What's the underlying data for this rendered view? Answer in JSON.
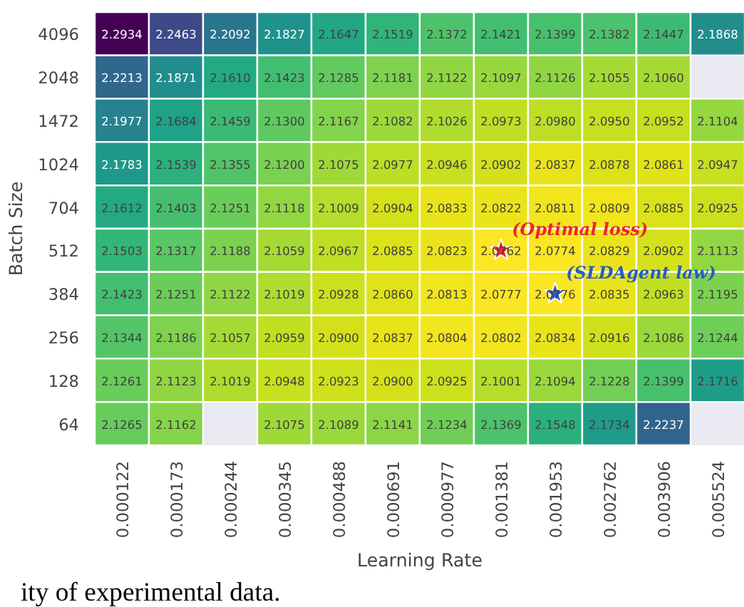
{
  "chart_data": {
    "type": "heatmap",
    "xlabel": "Learning Rate",
    "ylabel": "Batch Size",
    "categories": [
      "0.000122",
      "0.000173",
      "0.000244",
      "0.000345",
      "0.000488",
      "0.000691",
      "0.000977",
      "0.001381",
      "0.001953",
      "0.002762",
      "0.003906",
      "0.005524"
    ],
    "y_categories": [
      "4096",
      "2048",
      "1472",
      "1024",
      "704",
      "512",
      "384",
      "256",
      "128",
      "64"
    ],
    "cells": [
      [
        2.2934,
        2.2463,
        2.2092,
        2.1827,
        2.1647,
        2.1519,
        2.1372,
        2.1421,
        2.1399,
        2.1382,
        2.1447,
        2.1868
      ],
      [
        2.2213,
        2.1871,
        2.161,
        2.1423,
        2.1285,
        2.1181,
        2.1122,
        2.1097,
        2.1126,
        2.1055,
        2.106,
        null
      ],
      [
        2.1977,
        2.1684,
        2.1459,
        2.13,
        2.1167,
        2.1082,
        2.1026,
        2.0973,
        2.098,
        2.095,
        2.0952,
        2.1104
      ],
      [
        2.1783,
        2.1539,
        2.1355,
        2.12,
        2.1075,
        2.0977,
        2.0946,
        2.0902,
        2.0837,
        2.0878,
        2.0861,
        2.0947
      ],
      [
        2.1612,
        2.1403,
        2.1251,
        2.1118,
        2.1009,
        2.0904,
        2.0833,
        2.0822,
        2.0811,
        2.0809,
        2.0885,
        2.0925
      ],
      [
        2.1503,
        2.1317,
        2.1188,
        2.1059,
        2.0967,
        2.0885,
        2.0823,
        2.0762,
        2.0774,
        2.0829,
        2.0902,
        2.1113
      ],
      [
        2.1423,
        2.1251,
        2.1122,
        2.1019,
        2.0928,
        2.086,
        2.0813,
        2.0777,
        2.0776,
        2.0835,
        2.0963,
        2.1195
      ],
      [
        2.1344,
        2.1186,
        2.1057,
        2.0959,
        2.09,
        2.0837,
        2.0804,
        2.0802,
        2.0834,
        2.0916,
        2.1086,
        2.1244
      ],
      [
        2.1261,
        2.1123,
        2.1019,
        2.0948,
        2.0923,
        2.09,
        2.0925,
        2.1001,
        2.1094,
        2.1228,
        2.1399,
        2.1716
      ],
      [
        2.1265,
        2.1162,
        null,
        2.1075,
        2.1089,
        2.1141,
        2.1234,
        2.1369,
        2.1548,
        2.1734,
        2.2237,
        null
      ]
    ],
    "cell_labels": [
      [
        "2.2934",
        "2.2463",
        "2.2092",
        "2.1827",
        "2.1647",
        "2.1519",
        "2.1372",
        "2.1421",
        "2.1399",
        "2.1382",
        "2.1447",
        "2.1868"
      ],
      [
        "2.2213",
        "2.1871",
        "2.1610",
        "2.1423",
        "2.1285",
        "2.1181",
        "2.1122",
        "2.1097",
        "2.1126",
        "2.1055",
        "2.1060",
        null
      ],
      [
        "2.1977",
        "2.1684",
        "2.1459",
        "2.1300",
        "2.1167",
        "2.1082",
        "2.1026",
        "2.0973",
        "2.0980",
        "2.0950",
        "2.0952",
        "2.1104"
      ],
      [
        "2.1783",
        "2.1539",
        "2.1355",
        "2.1200",
        "2.1075",
        "2.0977",
        "2.0946",
        "2.0902",
        "2.0837",
        "2.0878",
        "2.0861",
        "2.0947"
      ],
      [
        "2.1612",
        "2.1403",
        "2.1251",
        "2.1118",
        "2.1009",
        "2.0904",
        "2.0833",
        "2.0822",
        "2.0811",
        "2.0809",
        "2.0885",
        "2.0925"
      ],
      [
        "2.1503",
        "2.1317",
        "2.1188",
        "2.1059",
        "2.0967",
        "2.0885",
        "2.0823",
        "2.0762",
        "2.0774",
        "2.0829",
        "2.0902",
        "2.1113"
      ],
      [
        "2.1423",
        "2.1251",
        "2.1122",
        "2.1019",
        "2.0928",
        "2.0860",
        "2.0813",
        "2.0777",
        "2.0776",
        "2.0835",
        "2.0963",
        "2.1195"
      ],
      [
        "2.1344",
        "2.1186",
        "2.1057",
        "2.0959",
        "2.0900",
        "2.0837",
        "2.0804",
        "2.0802",
        "2.0834",
        "2.0916",
        "2.1086",
        "2.1244"
      ],
      [
        "2.1261",
        "2.1123",
        "2.1019",
        "2.0948",
        "2.0923",
        "2.0900",
        "2.0925",
        "2.1001",
        "2.1094",
        "2.1228",
        "2.1399",
        "2.1716"
      ],
      [
        "2.1265",
        "2.1162",
        null,
        "2.1075",
        "2.1089",
        "2.1141",
        "2.1234",
        "2.1369",
        "2.1548",
        "2.1734",
        "2.2237",
        null
      ]
    ],
    "data_labels": true,
    "annotations": [
      {
        "text": "(Optimal loss)",
        "x": "0.001381",
        "y": "512"
      },
      {
        "text": "(SLDAgent law)",
        "x": "0.001953",
        "y": "384"
      },
      "ity of experimental data."
    ]
  }
}
